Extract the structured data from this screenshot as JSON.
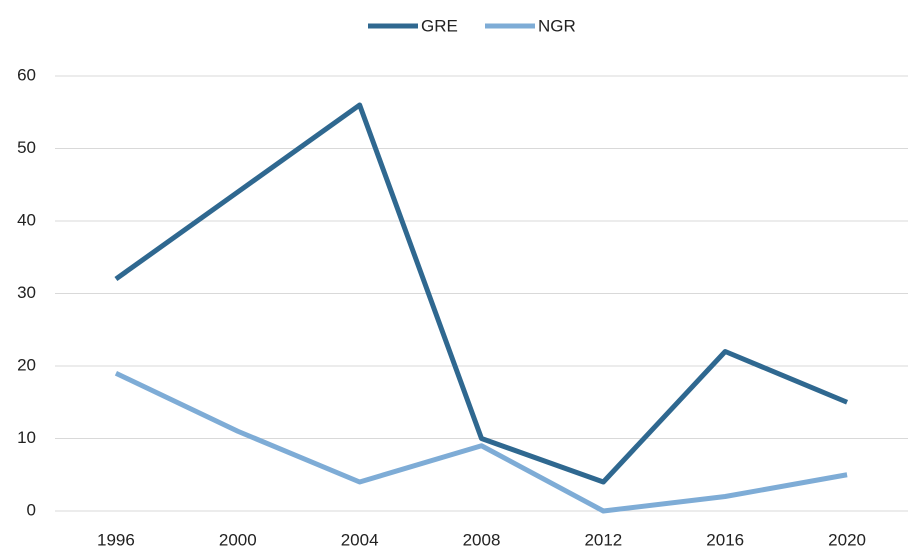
{
  "chart_data": {
    "type": "line",
    "categories": [
      "1996",
      "2000",
      "2004",
      "2008",
      "2012",
      "2016",
      "2020"
    ],
    "series": [
      {
        "name": "GRE",
        "color": "#2f6890",
        "values": [
          32,
          44,
          56,
          10,
          4,
          22,
          15
        ]
      },
      {
        "name": "NGR",
        "color": "#7eacd6",
        "values": [
          19,
          11,
          4,
          9,
          0,
          2,
          5
        ]
      }
    ],
    "ylim": [
      0,
      60
    ],
    "yticks": [
      0,
      10,
      20,
      30,
      40,
      50,
      60
    ],
    "grid": true,
    "legend": "top"
  }
}
